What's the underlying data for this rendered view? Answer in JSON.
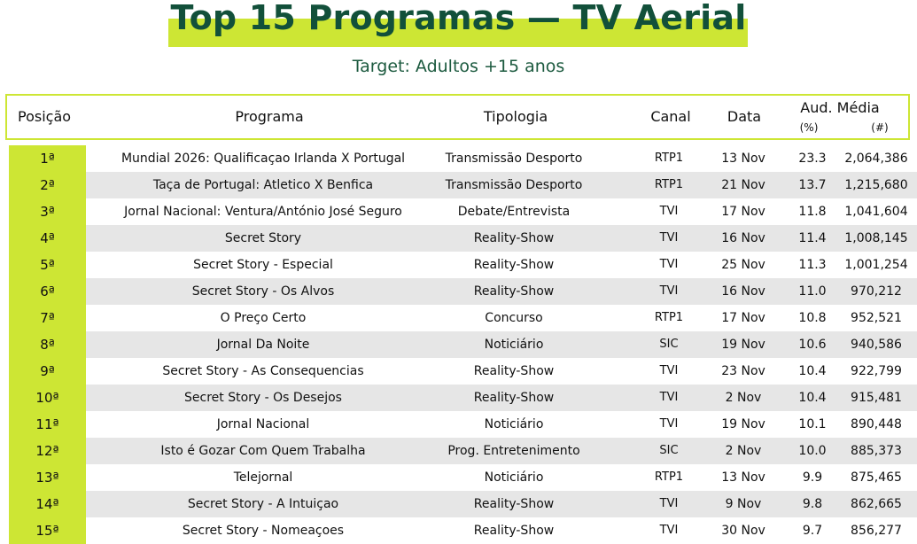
{
  "title": "Top 15 Programas — TV Aerial",
  "subtitle": "Target: Adultos +15 anos",
  "colors": {
    "accent": "#cde634",
    "title": "#12503a",
    "shade": "#e6e6e6"
  },
  "table": {
    "headers": {
      "posicao": "Posição",
      "programa": "Programa",
      "tipologia": "Tipologia",
      "canal": "Canal",
      "data": "Data",
      "aud_media": "Aud. Média",
      "pct": "(%)",
      "num": "(#)"
    },
    "rows": [
      {
        "pos": "1ª",
        "programa": "Mundial 2026: Qualificaçao Irlanda X Portugal",
        "tipologia": "Transmissão Desporto",
        "canal": "RTP1",
        "data": "13 Nov",
        "pct": "23.3",
        "num": "2,064,386"
      },
      {
        "pos": "2ª",
        "programa": "Taça de Portugal: Atletico X Benfica",
        "tipologia": "Transmissão Desporto",
        "canal": "RTP1",
        "data": "21 Nov",
        "pct": "13.7",
        "num": "1,215,680"
      },
      {
        "pos": "3ª",
        "programa": "Jornal Nacional: Ventura/António José Seguro",
        "tipologia": "Debate/Entrevista",
        "canal": "TVI",
        "data": "17 Nov",
        "pct": "11.8",
        "num": "1,041,604"
      },
      {
        "pos": "4ª",
        "programa": "Secret Story",
        "tipologia": "Reality-Show",
        "canal": "TVI",
        "data": "16 Nov",
        "pct": "11.4",
        "num": "1,008,145"
      },
      {
        "pos": "5ª",
        "programa": "Secret Story - Especial",
        "tipologia": "Reality-Show",
        "canal": "TVI",
        "data": "25 Nov",
        "pct": "11.3",
        "num": "1,001,254"
      },
      {
        "pos": "6ª",
        "programa": "Secret Story - Os Alvos",
        "tipologia": "Reality-Show",
        "canal": "TVI",
        "data": "16 Nov",
        "pct": "11.0",
        "num": "970,212"
      },
      {
        "pos": "7ª",
        "programa": "O Preço Certo",
        "tipologia": "Concurso",
        "canal": "RTP1",
        "data": "17 Nov",
        "pct": "10.8",
        "num": "952,521"
      },
      {
        "pos": "8ª",
        "programa": "Jornal Da Noite",
        "tipologia": "Noticiário",
        "canal": "SIC",
        "data": "19 Nov",
        "pct": "10.6",
        "num": "940,586"
      },
      {
        "pos": "9ª",
        "programa": "Secret Story - As Consequencias",
        "tipologia": "Reality-Show",
        "canal": "TVI",
        "data": "23 Nov",
        "pct": "10.4",
        "num": "922,799"
      },
      {
        "pos": "10ª",
        "programa": "Secret Story - Os Desejos",
        "tipologia": "Reality-Show",
        "canal": "TVI",
        "data": "2 Nov",
        "pct": "10.4",
        "num": "915,481"
      },
      {
        "pos": "11ª",
        "programa": "Jornal Nacional",
        "tipologia": "Noticiário",
        "canal": "TVI",
        "data": "19 Nov",
        "pct": "10.1",
        "num": "890,448"
      },
      {
        "pos": "12ª",
        "programa": "Isto é Gozar Com Quem Trabalha",
        "tipologia": "Prog. Entretenimento",
        "canal": "SIC",
        "data": "2 Nov",
        "pct": "10.0",
        "num": "885,373"
      },
      {
        "pos": "13ª",
        "programa": "Telejornal",
        "tipologia": "Noticiário",
        "canal": "RTP1",
        "data": "13 Nov",
        "pct": "9.9",
        "num": "875,465"
      },
      {
        "pos": "14ª",
        "programa": "Secret Story - A Intuiçao",
        "tipologia": "Reality-Show",
        "canal": "TVI",
        "data": "9 Nov",
        "pct": "9.8",
        "num": "862,665"
      },
      {
        "pos": "15ª",
        "programa": "Secret Story - Nomeaçoes",
        "tipologia": "Reality-Show",
        "canal": "TVI",
        "data": "30 Nov",
        "pct": "9.7",
        "num": "856,277"
      }
    ]
  }
}
